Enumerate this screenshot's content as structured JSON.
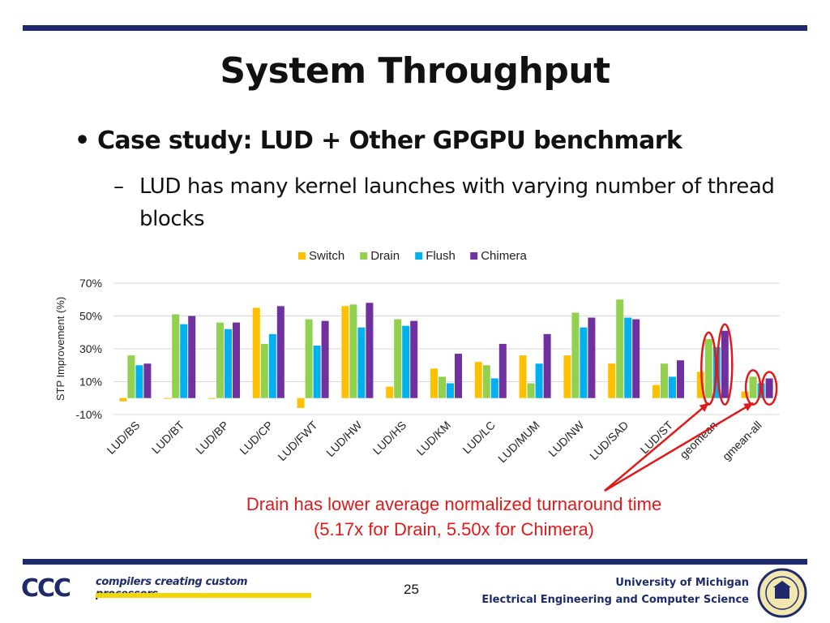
{
  "slide": {
    "title": "System Throughput",
    "bullet": "Case study: LUD + Other GPGPU benchmark",
    "subbullet": "LUD has many kernel launches with varying number of thread blocks",
    "annotation_line1": "Drain has lower average normalized turnaround time",
    "annotation_line2": "(5.17x for Drain, 5.50x for Chimera)",
    "footer_tagline": "compilers creating custom processors",
    "footer_logo_text": "CCC",
    "page_number": "25",
    "university": "University of Michigan",
    "department": "Electrical Engineering and Computer Science"
  },
  "colors": {
    "accent_navy": "#1e2a6b",
    "annotation_red": "#e01919",
    "switch": "#ffc000",
    "drain": "#92d050",
    "flush": "#00b0f0",
    "chimera": "#7030a0"
  },
  "chart_data": {
    "type": "bar",
    "ylabel": "STP Improvement (%)",
    "ylim": [
      -10,
      70
    ],
    "yticks": [
      -10,
      10,
      30,
      50,
      70
    ],
    "ytick_labels": [
      "-10%",
      "10%",
      "30%",
      "50%",
      "70%"
    ],
    "grid": true,
    "legend_position": "top",
    "categories": [
      "LUD/BS",
      "LUD/BT",
      "LUD/BP",
      "LUD/CP",
      "LUD/FWT",
      "LUD/HW",
      "LUD/HS",
      "LUD/KM",
      "LUD/LC",
      "LUD/MUM",
      "LUD/NW",
      "LUD/SAD",
      "LUD/ST",
      "geomean",
      "gmean-all"
    ],
    "series": [
      {
        "name": "Switch",
        "color": "#ffc000",
        "values": [
          -2,
          0,
          0,
          55,
          -6,
          56,
          7,
          18,
          22,
          26,
          26,
          21,
          8,
          16,
          4
        ]
      },
      {
        "name": "Drain",
        "color": "#92d050",
        "values": [
          26,
          51,
          46,
          33,
          48,
          57,
          48,
          13,
          20,
          9,
          52,
          60,
          21,
          36,
          13
        ]
      },
      {
        "name": "Flush",
        "color": "#00b0f0",
        "values": [
          20,
          45,
          42,
          39,
          32,
          43,
          44,
          9,
          12,
          21,
          43,
          49,
          13,
          31,
          9
        ]
      },
      {
        "name": "Chimera",
        "color": "#7030a0",
        "values": [
          21,
          50,
          46,
          56,
          47,
          58,
          47,
          27,
          33,
          39,
          49,
          48,
          23,
          41,
          12
        ]
      }
    ],
    "highlighted_categories": [
      "geomean",
      "gmean-all"
    ],
    "highlighted_series": [
      "Drain",
      "Chimera"
    ]
  }
}
